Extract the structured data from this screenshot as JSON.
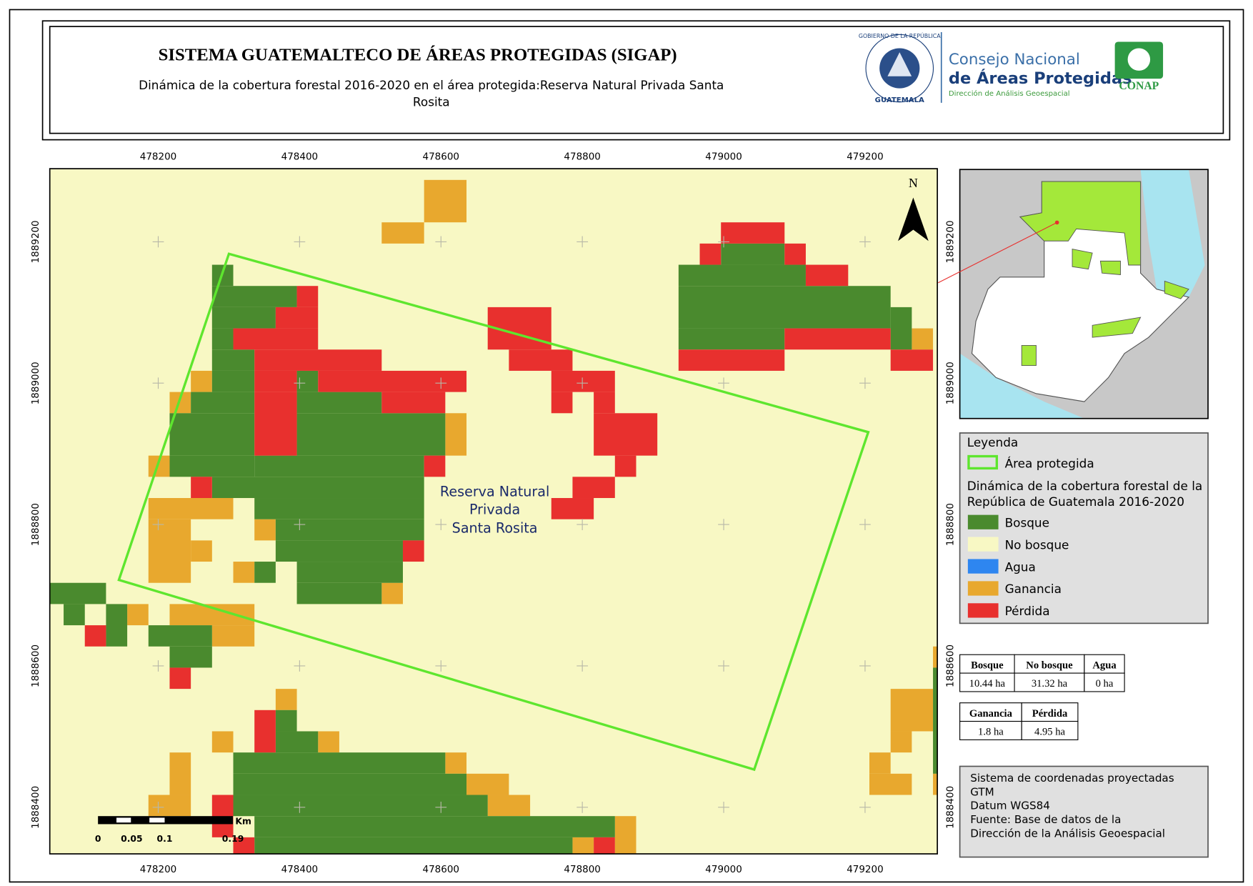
{
  "header": {
    "title": "SISTEMA GUATEMALTECO DE ÁREAS PROTEGIDAS  (SIGAP)",
    "subtitle_lines": [
      "Dinámica de la cobertura forestal 2016-2020 en el área protegida:Reserva Natural Privada Santa",
      "Rosita"
    ]
  },
  "logo": {
    "seal_top": "GOBIERNO DE LA REPÚBLICA",
    "seal_bottom": "GUATEMALA",
    "org_line1": "Consejo Nacional",
    "org_line2": "de Áreas Protegidas",
    "org_line3": "Dirección de Análisis Geoespacial",
    "acronym": "CONAP"
  },
  "map": {
    "x_ticks": [
      478200,
      478400,
      478600,
      478800,
      479000,
      479200
    ],
    "y_ticks": [
      1888400,
      1888600,
      1888800,
      1889000,
      1889200
    ],
    "north": "N",
    "area_label_lines": [
      "Reserva Natural",
      "Privada",
      "Santa Rosita"
    ]
  },
  "scale_bar": {
    "unit": "Km",
    "labels": [
      "0",
      "0.05",
      "0.1",
      "0.19"
    ]
  },
  "legend": {
    "title": "Leyenda",
    "protected_area": "Área protegida",
    "subtitle_lines": [
      "Dinámica de la cobertura forestal de la",
      "República de Guatemala 2016-2020"
    ],
    "items": [
      {
        "label": "Bosque",
        "color": "#4a8a2e"
      },
      {
        "label": "No bosque",
        "color": "#f8f8c4"
      },
      {
        "label": "Agua",
        "color": "#2e86f0"
      },
      {
        "label": "Ganancia",
        "color": "#e8a82e"
      },
      {
        "label": "Pérdida",
        "color": "#e8302e"
      }
    ]
  },
  "tables": [
    {
      "headers": [
        "Bosque",
        "No bosque",
        "Agua"
      ],
      "values": [
        "10.44 ha",
        "31.32 ha",
        "0 ha"
      ]
    },
    {
      "headers": [
        "Ganancia",
        "Pérdida"
      ],
      "values": [
        "1.8 ha",
        "4.95 ha"
      ]
    }
  ],
  "info": {
    "lines": [
      "Sistema de coordenadas proyectadas",
      "GTM",
      "Datum WGS84",
      "Fuente: Base de datos de la",
      "Dirección de la Análisis Geoespacial"
    ]
  }
}
